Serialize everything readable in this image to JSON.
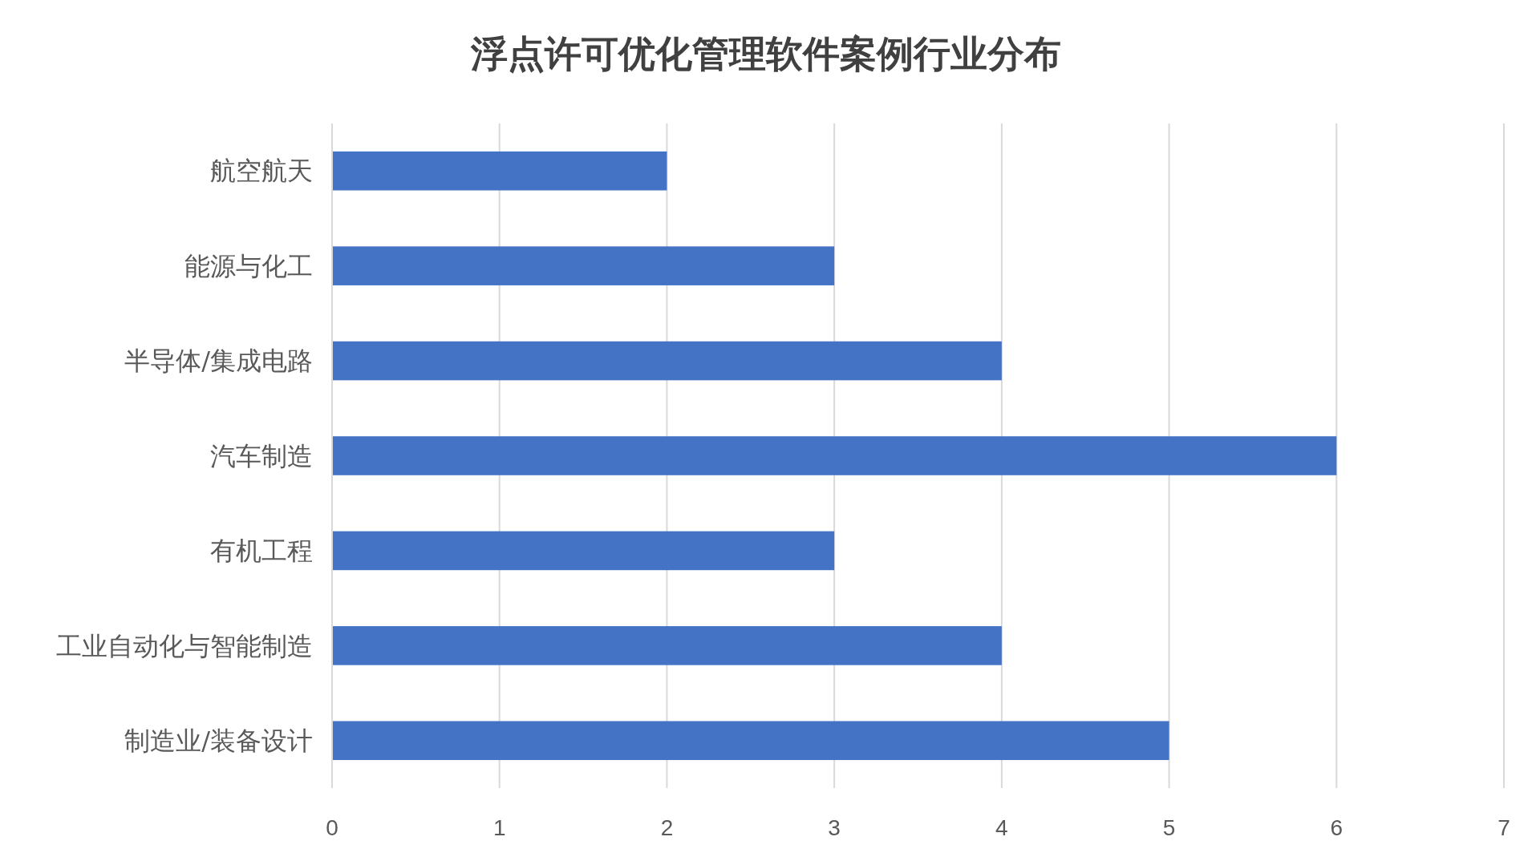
{
  "chart_data": {
    "type": "bar",
    "orientation": "horizontal",
    "title": "浮点许可优化管理软件案例行业分布",
    "categories": [
      "航空航天",
      "能源与化工",
      "半导体/集成电路",
      "汽车制造",
      "有机工程",
      "工业自动化与智能制造",
      "制造业/装备设计"
    ],
    "values": [
      2,
      3,
      4,
      6,
      3,
      4,
      5
    ],
    "color": "#4472c4",
    "xlim": [
      0,
      7
    ],
    "xticks": [
      0,
      1,
      2,
      3,
      4,
      5,
      6,
      7
    ],
    "grid": "x"
  }
}
